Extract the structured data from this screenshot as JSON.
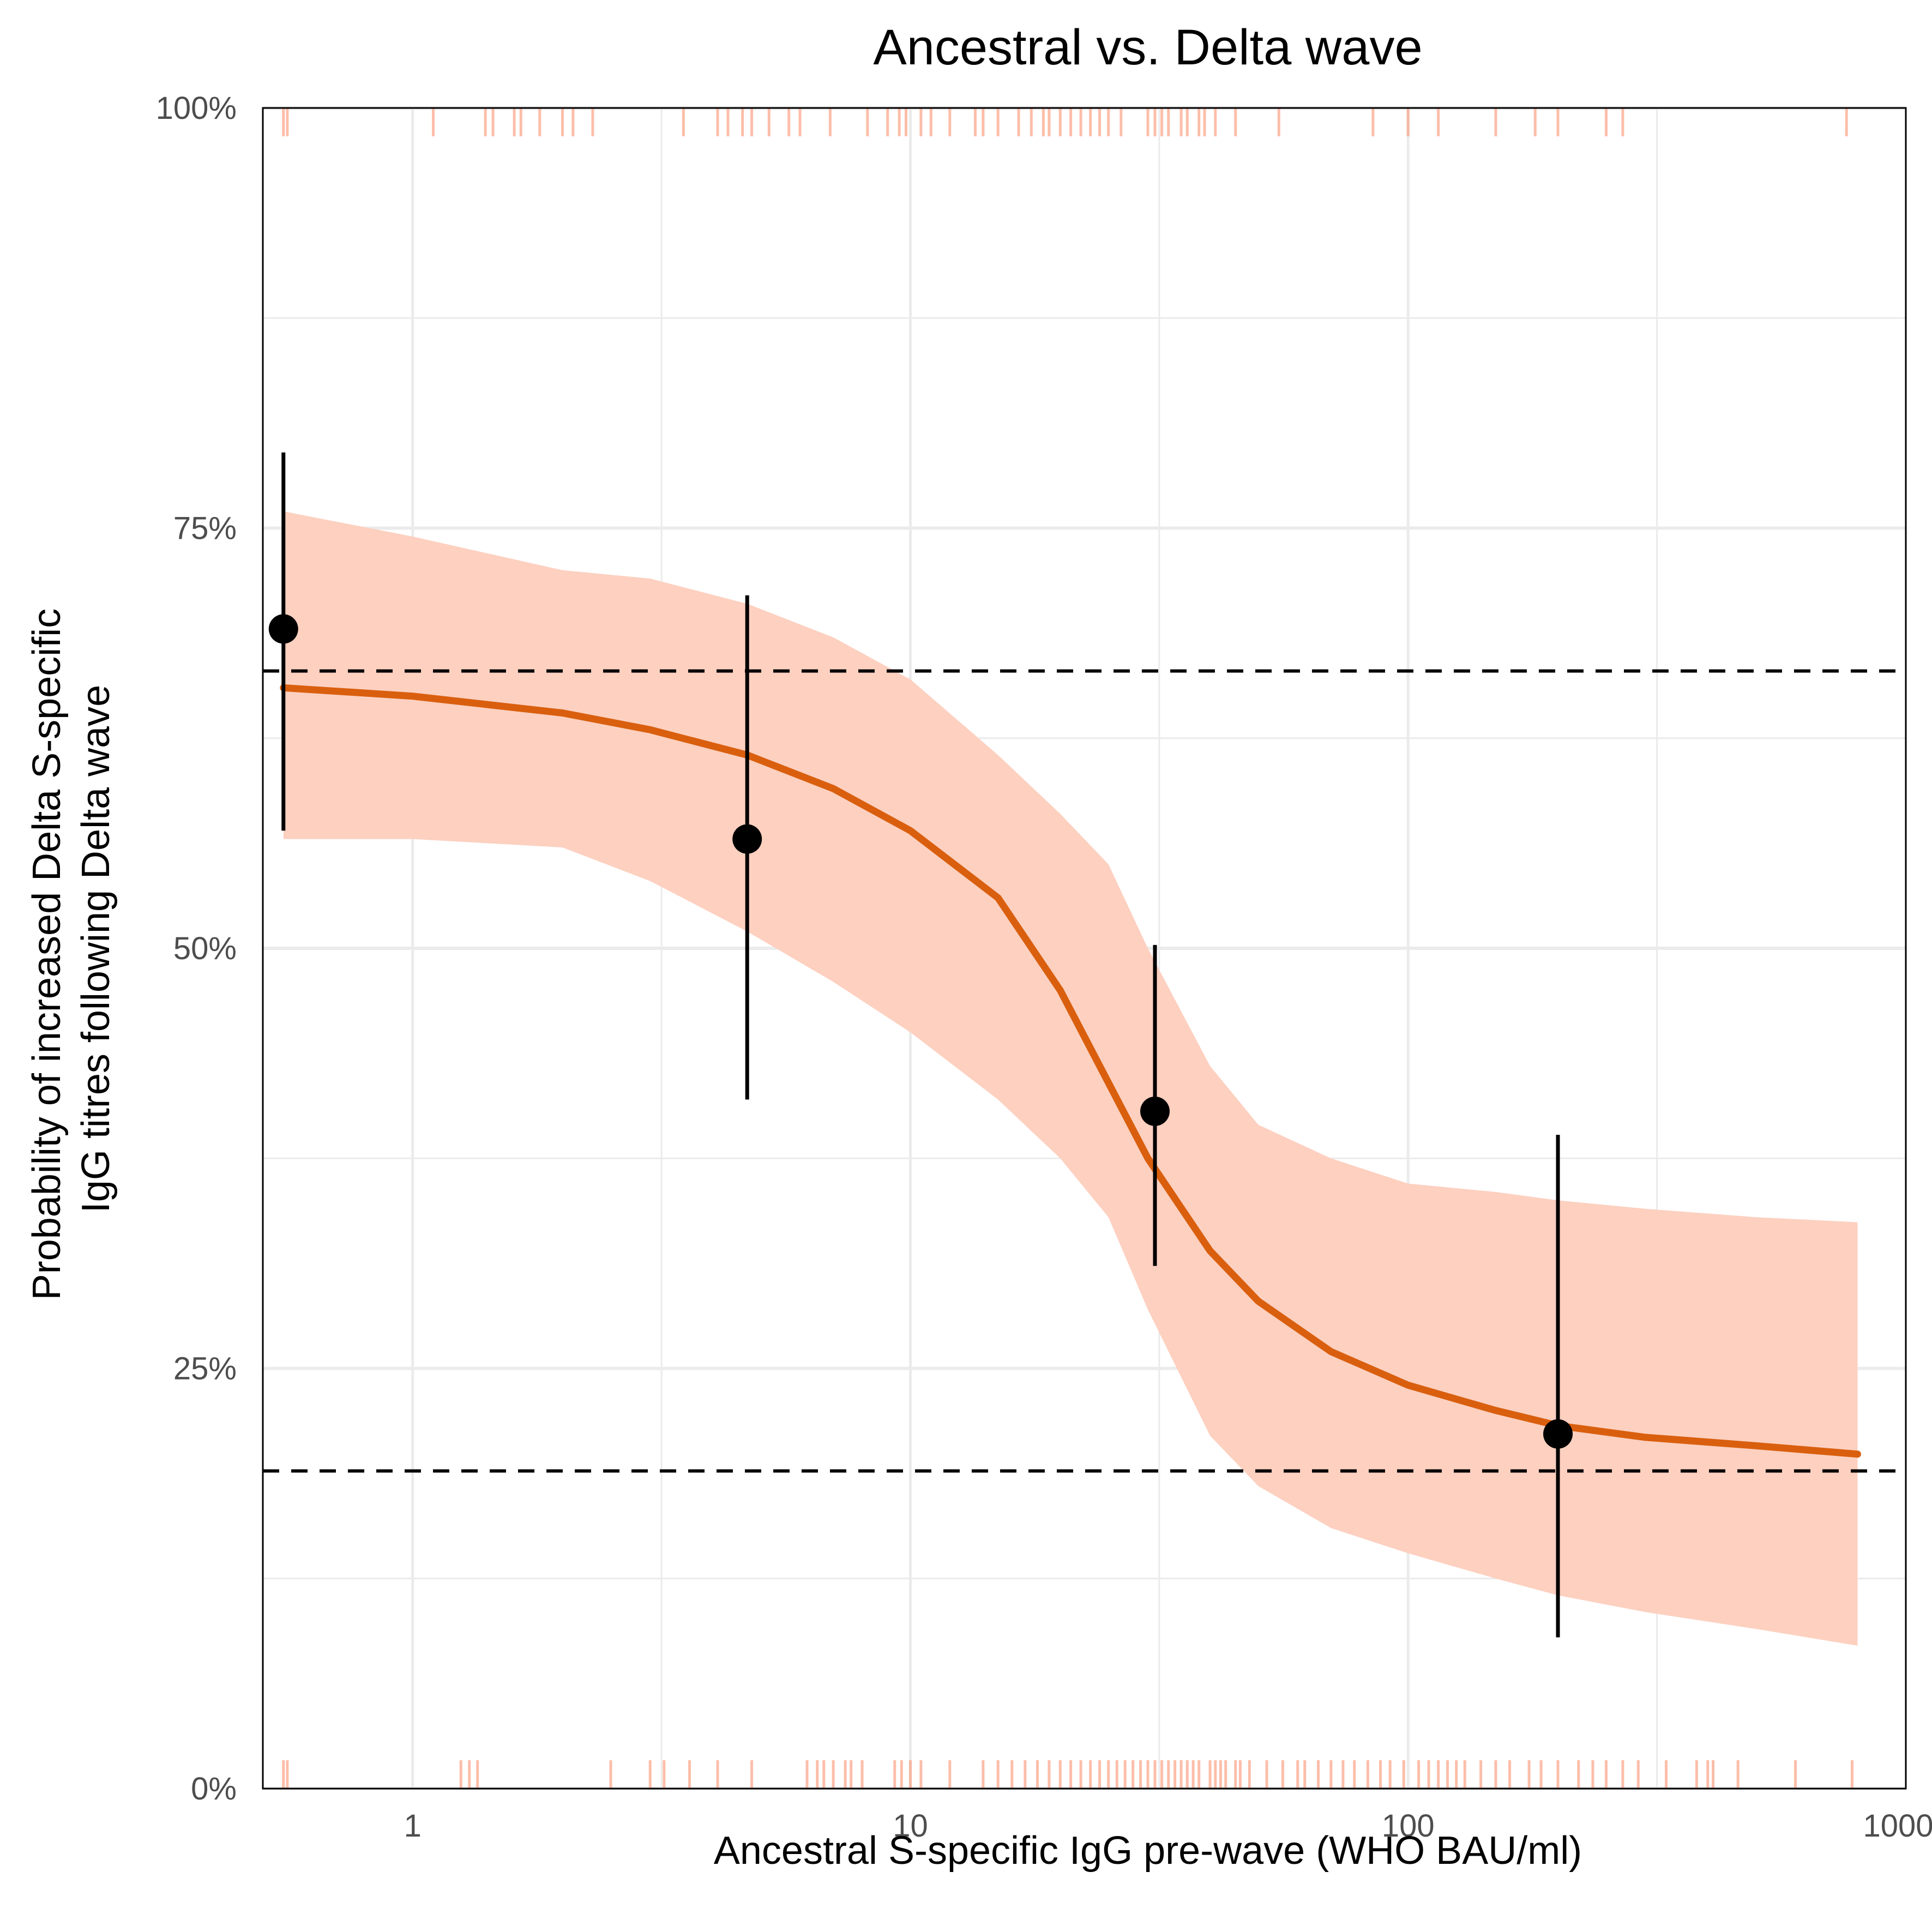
{
  "chart_data": {
    "type": "line",
    "title": "Ancestral vs. Delta wave",
    "xlabel": "Ancestral S-specific IgG pre-wave (WHO BAU/ml)",
    "ylabel_lines": [
      "Probability of increased Delta S-specific",
      "IgG titres following Delta wave"
    ],
    "x_scale": "log10",
    "xlim": [
      0.5,
      1000
    ],
    "ylim": [
      0,
      1
    ],
    "x_ticks": [
      1,
      10,
      100,
      1000
    ],
    "x_tick_labels": [
      "1",
      "10",
      "100",
      "1000"
    ],
    "y_ticks": [
      0,
      0.25,
      0.5,
      0.75,
      1
    ],
    "y_tick_labels": [
      "0%",
      "25%",
      "50%",
      "75%",
      "100%"
    ],
    "grid": true,
    "colors": {
      "line": "#d95f0e",
      "ribbon": "#fdd0c0",
      "rug": "#fc9272",
      "points": "#000000",
      "reference": "#000000"
    },
    "fit": {
      "x": [
        0.55,
        1,
        2,
        3,
        4.7,
        7,
        10,
        15,
        20,
        25,
        30,
        40,
        50,
        70,
        100,
        150,
        200,
        300,
        500,
        800
      ],
      "y": [
        0.655,
        0.65,
        0.64,
        0.63,
        0.615,
        0.595,
        0.57,
        0.53,
        0.475,
        0.42,
        0.375,
        0.32,
        0.29,
        0.26,
        0.24,
        0.225,
        0.216,
        0.209,
        0.204,
        0.199
      ],
      "lower": [
        0.565,
        0.565,
        0.56,
        0.54,
        0.51,
        0.48,
        0.45,
        0.41,
        0.375,
        0.34,
        0.285,
        0.21,
        0.18,
        0.155,
        0.14,
        0.125,
        0.115,
        0.105,
        0.095,
        0.085
      ],
      "upper": [
        0.76,
        0.745,
        0.725,
        0.72,
        0.705,
        0.685,
        0.66,
        0.615,
        0.58,
        0.55,
        0.5,
        0.43,
        0.395,
        0.375,
        0.36,
        0.355,
        0.35,
        0.345,
        0.34,
        0.337
      ]
    },
    "points": [
      {
        "x": 0.55,
        "y": 0.69,
        "lower": 0.57,
        "upper": 0.795
      },
      {
        "x": 4.7,
        "y": 0.565,
        "lower": 0.41,
        "upper": 0.71
      },
      {
        "x": 31,
        "y": 0.403,
        "lower": 0.311,
        "upper": 0.502
      },
      {
        "x": 200,
        "y": 0.211,
        "lower": 0.09,
        "upper": 0.389
      }
    ],
    "reference_lines": [
      0.665,
      0.189
    ],
    "rug_top": [
      0.55,
      0.56,
      1.1,
      1.4,
      1.45,
      1.6,
      1.65,
      1.8,
      2.0,
      2.1,
      2.3,
      3.5,
      4.1,
      4.3,
      4.6,
      4.8,
      5.2,
      5.7,
      6.0,
      6.9,
      8.2,
      9.0,
      9.5,
      9.8,
      10.5,
      11,
      12,
      13.5,
      14,
      15,
      16.5,
      17.5,
      18.5,
      19,
      20,
      21,
      22,
      23,
      24,
      25,
      26.5,
      30,
      31,
      32,
      33,
      35,
      36,
      38,
      39,
      41,
      45,
      55,
      85,
      100,
      115,
      150,
      180,
      200,
      250,
      270,
      760
    ],
    "rug_bottom": [
      0.55,
      0.56,
      1.25,
      1.3,
      1.35,
      2.5,
      3.0,
      3.2,
      3.6,
      4.1,
      4.8,
      6.2,
      6.5,
      6.7,
      7.0,
      7.4,
      7.6,
      8.0,
      9.3,
      9.6,
      10.0,
      10.5,
      12,
      14,
      15,
      16,
      17,
      18,
      19,
      20,
      21,
      22,
      23,
      24,
      25,
      26,
      27,
      28,
      29,
      30,
      31,
      32,
      33,
      34,
      35,
      36,
      37,
      38,
      40,
      41,
      42,
      43,
      45,
      46,
      48,
      52,
      56,
      60,
      62,
      66,
      70,
      74,
      78,
      83,
      88,
      92,
      98,
      105,
      110,
      115,
      120,
      125,
      130,
      140,
      150,
      160,
      175,
      185,
      200,
      220,
      235,
      250,
      270,
      290,
      330,
      380,
      400,
      410,
      460,
      600,
      780
    ]
  }
}
